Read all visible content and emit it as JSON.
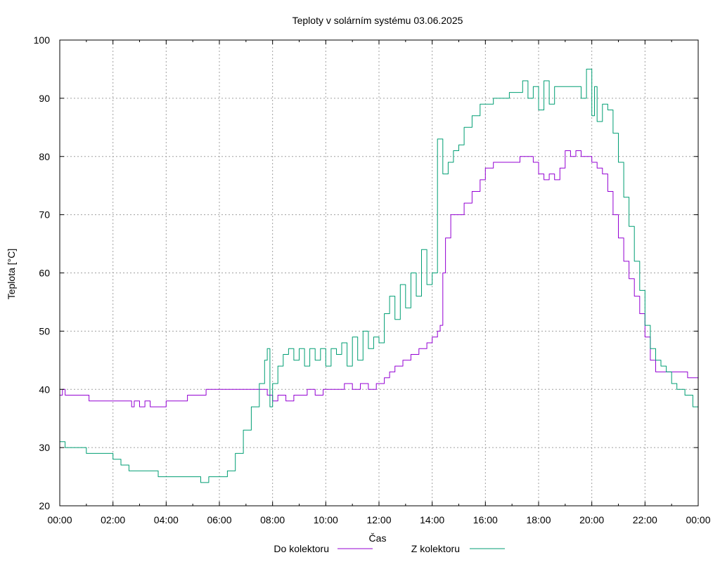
{
  "chart_data": {
    "type": "line",
    "title": "Teploty v solárním systému 03.06.2025",
    "xlabel": "Čas",
    "ylabel": "Teplota [°C]",
    "xlim": [
      0,
      24
    ],
    "ylim": [
      20,
      100
    ],
    "grid": true,
    "legend_position": "bottom",
    "x_ticks": [
      {
        "value": 0,
        "label": "00:00"
      },
      {
        "value": 2,
        "label": "02:00"
      },
      {
        "value": 4,
        "label": "04:00"
      },
      {
        "value": 6,
        "label": "06:00"
      },
      {
        "value": 8,
        "label": "08:00"
      },
      {
        "value": 10,
        "label": "10:00"
      },
      {
        "value": 12,
        "label": "12:00"
      },
      {
        "value": 14,
        "label": "14:00"
      },
      {
        "value": 16,
        "label": "16:00"
      },
      {
        "value": 18,
        "label": "18:00"
      },
      {
        "value": 20,
        "label": "20:00"
      },
      {
        "value": 22,
        "label": "22:00"
      },
      {
        "value": 24,
        "label": "00:00"
      }
    ],
    "y_ticks": [
      {
        "value": 20,
        "label": "20"
      },
      {
        "value": 30,
        "label": "30"
      },
      {
        "value": 40,
        "label": "40"
      },
      {
        "value": 50,
        "label": "50"
      },
      {
        "value": 60,
        "label": "60"
      },
      {
        "value": 70,
        "label": "70"
      },
      {
        "value": 80,
        "label": "80"
      },
      {
        "value": 90,
        "label": "90"
      },
      {
        "value": 100,
        "label": "100"
      }
    ],
    "series": [
      {
        "name": "Do kolektoru",
        "color": "#9400d3",
        "x": [
          0,
          0.1,
          0.2,
          0.5,
          1.0,
          1.1,
          1.5,
          2.0,
          2.5,
          2.7,
          2.8,
          3.0,
          3.2,
          3.4,
          3.6,
          3.8,
          4.0,
          4.5,
          4.8,
          5.0,
          5.5,
          6.0,
          6.5,
          7.0,
          7.5,
          7.8,
          8.0,
          8.2,
          8.5,
          8.8,
          9.0,
          9.3,
          9.6,
          9.9,
          10.0,
          10.5,
          10.7,
          11.0,
          11.3,
          11.6,
          11.9,
          12.0,
          12.2,
          12.4,
          12.6,
          12.9,
          13.2,
          13.5,
          13.8,
          14.0,
          14.2,
          14.3,
          14.4,
          14.5,
          14.7,
          15.0,
          15.2,
          15.5,
          15.8,
          16.0,
          16.3,
          16.6,
          17.0,
          17.3,
          17.6,
          17.8,
          18.0,
          18.2,
          18.4,
          18.6,
          18.8,
          19.0,
          19.2,
          19.4,
          19.6,
          19.8,
          20.0,
          20.2,
          20.4,
          20.6,
          20.8,
          21.0,
          21.2,
          21.4,
          21.6,
          21.8,
          22.0,
          22.2,
          22.4,
          22.6,
          22.8,
          23.0,
          23.3,
          23.6,
          23.8,
          24.0
        ],
        "values": [
          39,
          40,
          39,
          39,
          39,
          38,
          38,
          38,
          38,
          37,
          38,
          37,
          38,
          37,
          37,
          37,
          38,
          38,
          39,
          39,
          40,
          40,
          40,
          40,
          40,
          39,
          38,
          39,
          38,
          39,
          39,
          40,
          39,
          40,
          40,
          40,
          41,
          40,
          41,
          40,
          41,
          41,
          42,
          43,
          44,
          45,
          46,
          47,
          48,
          49,
          50,
          51,
          60,
          66,
          70,
          70,
          72,
          74,
          76,
          78,
          79,
          79,
          79,
          80,
          80,
          79,
          77,
          76,
          77,
          76,
          78,
          81,
          80,
          81,
          80,
          80,
          79,
          78,
          77,
          74,
          70,
          66,
          62,
          59,
          56,
          53,
          49,
          45,
          43,
          43,
          43,
          43,
          43,
          42,
          42,
          41
        ]
      },
      {
        "name": "Z kolektoru",
        "color": "#009e73",
        "x": [
          0,
          0.2,
          0.5,
          1.0,
          1.5,
          2.0,
          2.3,
          2.6,
          3.0,
          3.4,
          3.7,
          4.0,
          4.5,
          5.0,
          5.3,
          5.6,
          5.9,
          6.0,
          6.3,
          6.6,
          6.9,
          7.2,
          7.5,
          7.7,
          7.8,
          7.9,
          8.0,
          8.2,
          8.4,
          8.6,
          8.8,
          9.0,
          9.2,
          9.4,
          9.6,
          9.8,
          10.0,
          10.2,
          10.4,
          10.6,
          10.8,
          11.0,
          11.2,
          11.4,
          11.6,
          11.8,
          12.0,
          12.2,
          12.4,
          12.6,
          12.8,
          13.0,
          13.2,
          13.4,
          13.6,
          13.8,
          14.0,
          14.2,
          14.4,
          14.6,
          14.8,
          15.0,
          15.2,
          15.5,
          15.8,
          16.0,
          16.3,
          16.6,
          16.9,
          17.2,
          17.4,
          17.6,
          17.8,
          18.0,
          18.2,
          18.4,
          18.6,
          18.8,
          19.0,
          19.2,
          19.4,
          19.6,
          19.8,
          20.0,
          20.1,
          20.2,
          20.4,
          20.6,
          20.8,
          21.0,
          21.2,
          21.4,
          21.6,
          21.8,
          22.0,
          22.2,
          22.4,
          22.6,
          22.8,
          23.0,
          23.2,
          23.5,
          23.8,
          24.0
        ],
        "values": [
          31,
          30,
          30,
          29,
          29,
          28,
          27,
          26,
          26,
          26,
          25,
          25,
          25,
          25,
          24,
          25,
          25,
          25,
          26,
          29,
          33,
          37,
          41,
          45,
          47,
          37,
          41,
          44,
          46,
          47,
          45,
          47,
          44,
          47,
          45,
          47,
          44,
          47,
          46,
          48,
          44,
          49,
          45,
          50,
          47,
          49,
          48,
          53,
          56,
          52,
          58,
          54,
          60,
          56,
          64,
          58,
          60,
          83,
          77,
          79,
          81,
          82,
          85,
          87,
          89,
          89,
          90,
          90,
          91,
          91,
          93,
          90,
          92,
          88,
          93,
          89,
          92,
          92,
          92,
          92,
          92,
          90,
          95,
          87,
          92,
          86,
          89,
          88,
          84,
          79,
          73,
          68,
          62,
          57,
          51,
          47,
          45,
          44,
          43,
          41,
          40,
          39,
          37,
          36
        ]
      }
    ]
  }
}
